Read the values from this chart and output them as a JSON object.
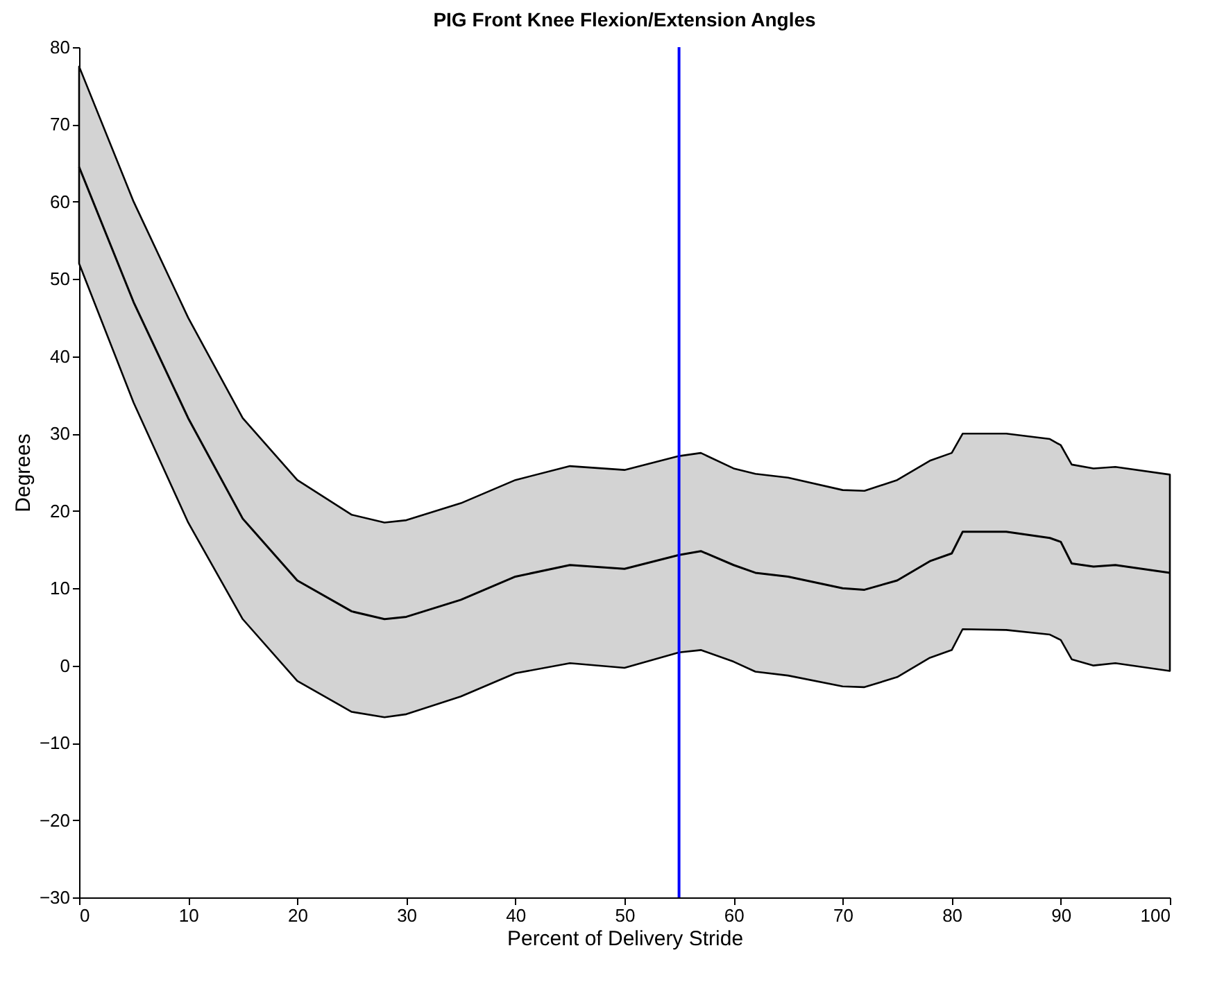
{
  "chart_data": {
    "type": "line",
    "title": "PIG Front Knee Flexion/Extension Angles",
    "xlabel": "Percent of Delivery Stride",
    "ylabel": "Degrees",
    "x": [
      0,
      5,
      10,
      15,
      20,
      25,
      28,
      30,
      35,
      40,
      45,
      50,
      55,
      57,
      60,
      62,
      65,
      70,
      72,
      75,
      78,
      80,
      81,
      85,
      89,
      90,
      91,
      93,
      95,
      100
    ],
    "series": [
      {
        "color": "#000000",
        "values": [
          64.5,
          47,
          32,
          19,
          11,
          7,
          6,
          6.3,
          8.5,
          11.5,
          13,
          12.5,
          14.3,
          14.8,
          13,
          12,
          11.5,
          10,
          9.8,
          11,
          13.5,
          14.5,
          17.3,
          17.3,
          16.5,
          16,
          13.2,
          12.8,
          13,
          12
        ],
        "lower": [
          52,
          34,
          18.5,
          6,
          -2,
          -6,
          -6.7,
          -6.3,
          -4,
          -1,
          0.3,
          -0.3,
          1.7,
          2,
          0.5,
          -0.8,
          -1.3,
          -2.7,
          -2.8,
          -1.5,
          1,
          2,
          4.7,
          4.6,
          4,
          3.3,
          0.8,
          0,
          0.3,
          -0.7
        ],
        "upper": [
          77.5,
          60,
          45,
          32,
          24,
          19.5,
          18.5,
          18.8,
          21,
          24,
          25.8,
          25.3,
          27.1,
          27.5,
          25.5,
          24.8,
          24.3,
          22.7,
          22.6,
          24,
          26.5,
          27.5,
          30,
          30,
          29.3,
          28.5,
          26,
          25.5,
          25.7,
          24.7
        ]
      }
    ],
    "xlim": [
      0,
      100
    ],
    "xticks": [
      0,
      10,
      20,
      30,
      40,
      50,
      60,
      70,
      80,
      90,
      100
    ],
    "ylim": [
      -30,
      80
    ],
    "yticks": [
      -30,
      -20,
      -10,
      0,
      10,
      20,
      30,
      40,
      50,
      60,
      70,
      80
    ],
    "ref_lines": [
      {
        "axis": "x",
        "value": 55,
        "color": "#0000ff"
      }
    ],
    "grid": false,
    "marker": "none",
    "line_style": "solid"
  }
}
